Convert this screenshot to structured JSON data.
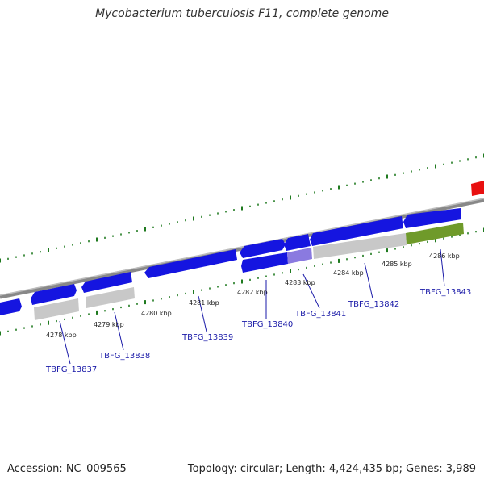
{
  "title": "Mycobacterium tuberculosis F11, complete genome",
  "footer": {
    "accession": "Accession: NC_009565",
    "stats": "Topology: circular; Length: 4,424,435 bp; Genes: 3,989"
  },
  "colors": {
    "forward_gene": "#1515e0",
    "selected_gene": "#8a7ae0",
    "rna_gray": "#c8c8c8",
    "olive": "#6f9a2a",
    "red": "#e81010",
    "tick_green": "#1f7a1f",
    "backbone": "#888888",
    "label_blue": "#1a1aa8"
  },
  "kbp_labels": [
    "4278 kbp",
    "4279 kbp",
    "4280 kbp",
    "4281 kbp",
    "4282 kbp",
    "4283 kbp",
    "4284 kbp",
    "4285 kbp",
    "4286 kbp"
  ],
  "gene_labels": [
    "TBFG_13837",
    "TBFG_13838",
    "TBFG_13839",
    "TBFG_13840",
    "TBFG_13841",
    "TBFG_13842",
    "TBFG_13843"
  ]
}
